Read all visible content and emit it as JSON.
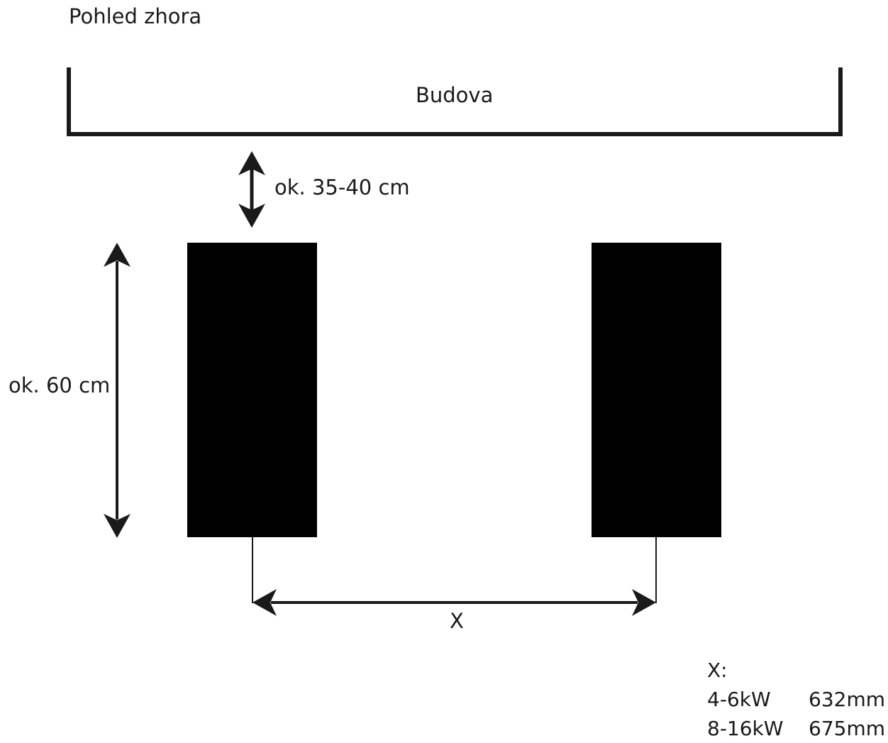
{
  "title": "Pohled zhora",
  "building": {
    "label": "Budova"
  },
  "dimensions": {
    "wall_gap": "ok. 35-40 cm",
    "unit_depth": "ok. 60 cm",
    "spacing": "X"
  },
  "spec_table": {
    "heading": "X:",
    "rows": [
      {
        "model": "4-6kW",
        "value": "632mm"
      },
      {
        "model": "8-16kW",
        "value": "675mm"
      }
    ]
  },
  "colors": {
    "ink": "#1a1a1a",
    "unit_fill": "#000000",
    "background": "#ffffff"
  }
}
